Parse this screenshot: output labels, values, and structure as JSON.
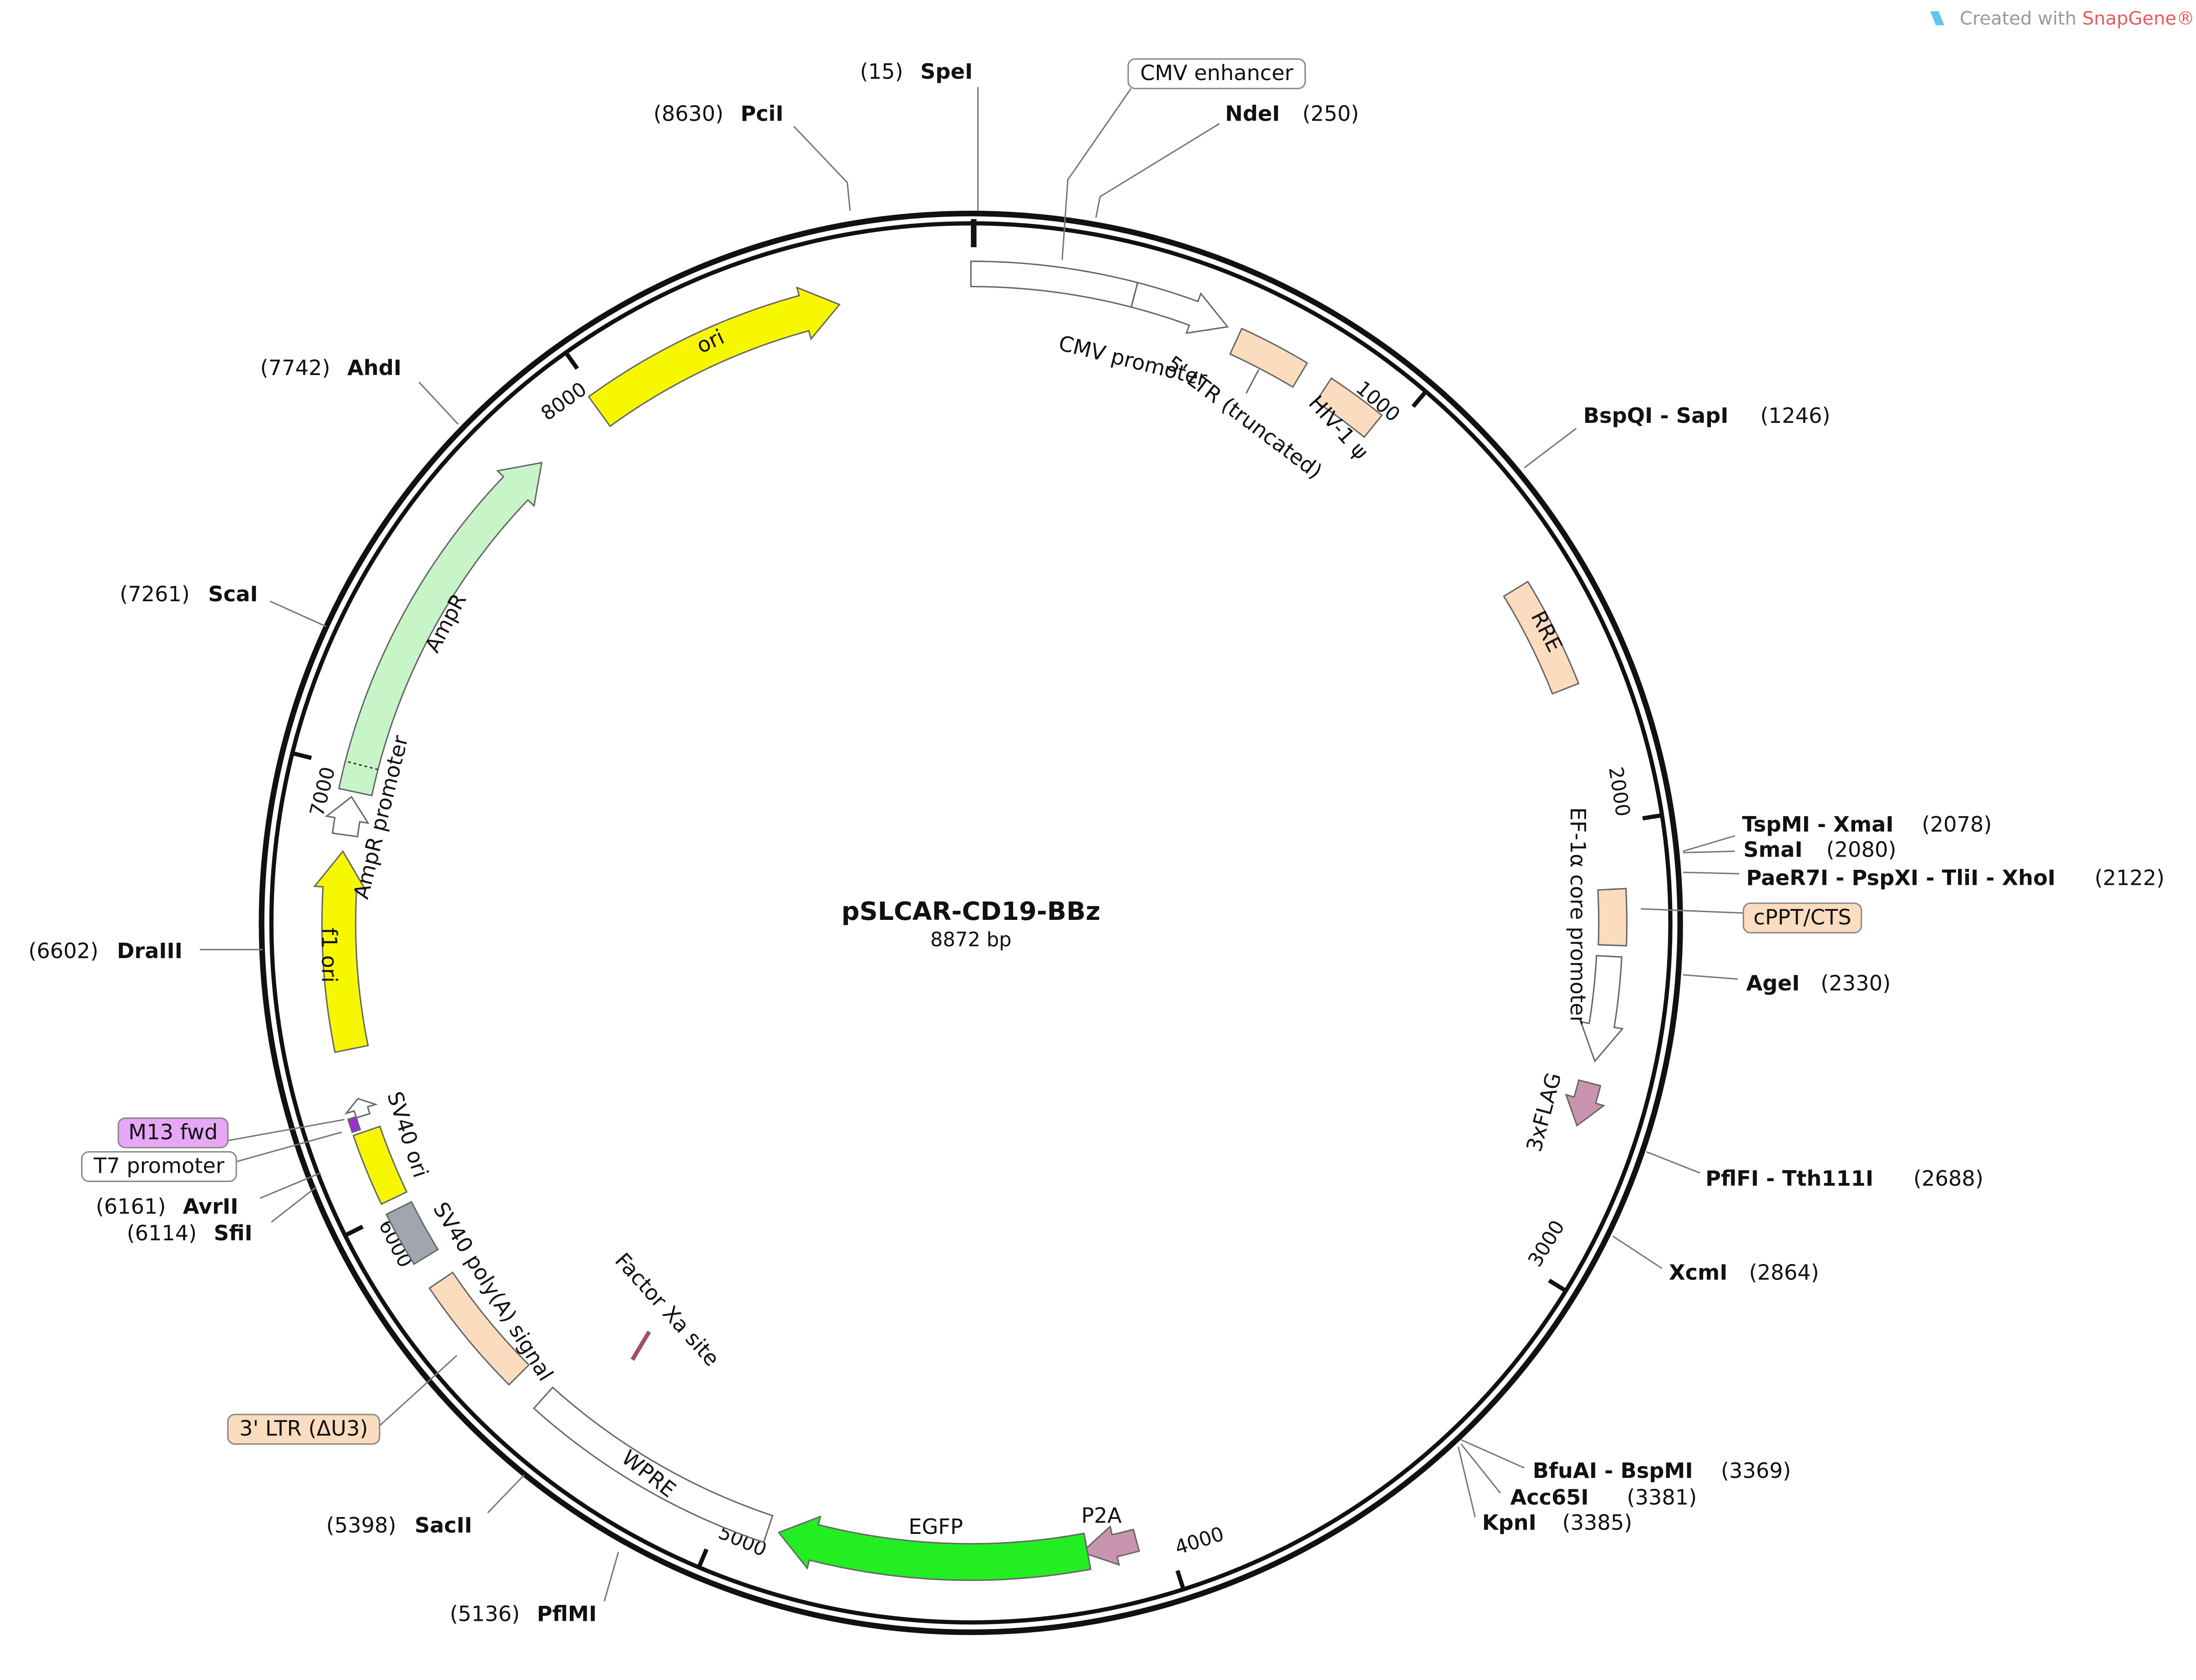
{
  "title": "pSLCAR-CD19-BBz",
  "length": "8872 bp",
  "watermark": {
    "prefix": "Created with",
    "brand": "SnapGene®"
  },
  "ticks": [
    "1000",
    "2000",
    "3000",
    "4000",
    "5000",
    "6000",
    "7000",
    "8000"
  ],
  "sites": [
    {
      "name": "SpeI",
      "position": "(15)"
    },
    {
      "name": "PciI",
      "position": "(8630)"
    },
    {
      "name": "NdeI",
      "position": "(250)"
    },
    {
      "name": "AhdI",
      "position": "(7742)"
    },
    {
      "name": "BspQI - SapI",
      "position": "(1246)"
    },
    {
      "name": "ScaI",
      "position": "(7261)"
    },
    {
      "name": "TspMI - XmaI",
      "position": "(2078)"
    },
    {
      "name": "SmaI",
      "position": "(2080)"
    },
    {
      "name": "PaeR7I - PspXI - TliI - XhoI",
      "position": "(2122)"
    },
    {
      "name": "AgeI",
      "position": "(2330)"
    },
    {
      "name": "PflFI - Tth111I",
      "position": "(2688)"
    },
    {
      "name": "XcmI",
      "position": "(2864)"
    },
    {
      "name": "BfuAI - BspMI",
      "position": "(3369)"
    },
    {
      "name": "Acc65I",
      "position": "(3381)"
    },
    {
      "name": "KpnI",
      "position": "(3385)"
    },
    {
      "name": "PflMI",
      "position": "(5136)"
    },
    {
      "name": "SacII",
      "position": "(5398)"
    },
    {
      "name": "SfiI",
      "position": "(6114)"
    },
    {
      "name": "AvrII",
      "position": "(6161)"
    },
    {
      "name": "DraIII",
      "position": "(6602)"
    }
  ],
  "features": [
    {
      "label": "CMV enhancer"
    },
    {
      "label": "CMV promoter"
    },
    {
      "label": "5' LTR (truncated)"
    },
    {
      "label": "HIV-1 ψ"
    },
    {
      "label": "RRE"
    },
    {
      "label": "cPPT/CTS"
    },
    {
      "label": "EF-1α core promoter"
    },
    {
      "label": "3xFLAG"
    },
    {
      "label": "P2A"
    },
    {
      "label": "EGFP"
    },
    {
      "label": "Factor Xa site"
    },
    {
      "label": "WPRE"
    },
    {
      "label": "3' LTR (ΔU3)"
    },
    {
      "label": "SV40 poly(A) signal"
    },
    {
      "label": "SV40 ori"
    },
    {
      "label": "T7 promoter"
    },
    {
      "label": "M13 fwd"
    },
    {
      "label": "f1 ori"
    },
    {
      "label": "AmpR promoter"
    },
    {
      "label": "AmpR"
    },
    {
      "label": "ori"
    }
  ]
}
